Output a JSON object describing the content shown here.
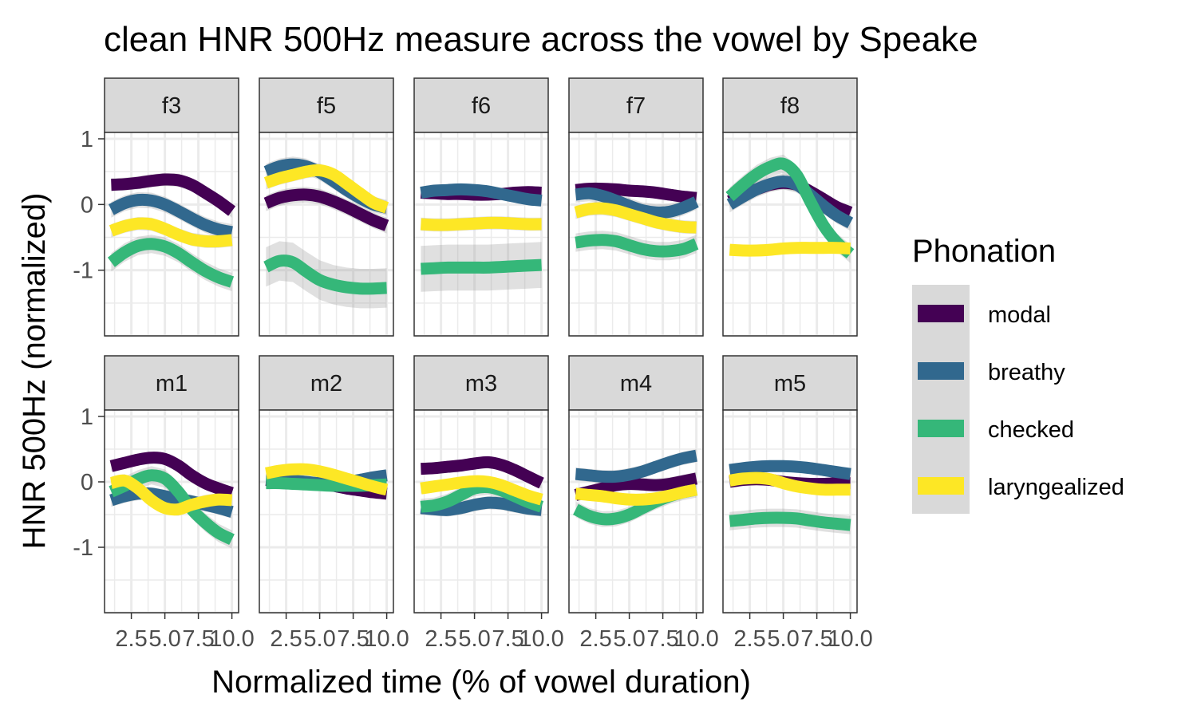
{
  "chart_data": {
    "type": "line",
    "title": "clean HNR 500Hz measure across the vowel by Speake",
    "xlabel": "Normalized time (% of vowel duration)",
    "ylabel": "HNR 500Hz (normalized)",
    "xlim": [
      0.5,
      10.5
    ],
    "ylim": [
      -2.0,
      1.0
    ],
    "x_ticks": [
      2.5,
      5.0,
      7.5,
      10.0
    ],
    "x_tick_labels": [
      "2.5",
      "5.0",
      "7.5",
      "10.0"
    ],
    "y_ticks": [
      1,
      0,
      -1
    ],
    "y_tick_labels": [
      "1",
      "0",
      "-1"
    ],
    "grid": true,
    "legend": {
      "title": "Phonation",
      "position": "right",
      "entries": [
        {
          "label": "modal",
          "color": "#440154"
        },
        {
          "label": "breathy",
          "color": "#31688e"
        },
        {
          "label": "checked",
          "color": "#35b779"
        },
        {
          "label": "laryngealized",
          "color": "#fde725"
        }
      ]
    },
    "x": [
      1,
      2,
      3,
      4,
      5,
      6,
      7,
      8,
      9,
      10
    ],
    "panels": [
      {
        "label": "f3",
        "series": [
          {
            "name": "modal",
            "values": [
              0.3,
              0.31,
              0.33,
              0.36,
              0.38,
              0.37,
              0.3,
              0.18,
              0.05,
              -0.1
            ],
            "se": 0.1
          },
          {
            "name": "breathy",
            "values": [
              -0.08,
              0.02,
              0.07,
              0.06,
              0.0,
              -0.1,
              -0.21,
              -0.31,
              -0.38,
              -0.42
            ],
            "se": 0.12
          },
          {
            "name": "checked",
            "values": [
              -0.88,
              -0.73,
              -0.63,
              -0.6,
              -0.64,
              -0.74,
              -0.88,
              -1.01,
              -1.11,
              -1.18
            ],
            "se": 0.14
          },
          {
            "name": "laryngealized",
            "values": [
              -0.4,
              -0.33,
              -0.29,
              -0.3,
              -0.37,
              -0.46,
              -0.53,
              -0.56,
              -0.56,
              -0.54
            ],
            "se": 0.1
          }
        ]
      },
      {
        "label": "f5",
        "series": [
          {
            "name": "modal",
            "values": [
              0.02,
              0.1,
              0.14,
              0.15,
              0.12,
              0.05,
              -0.04,
              -0.14,
              -0.24,
              -0.32
            ],
            "se": 0.12
          },
          {
            "name": "breathy",
            "values": [
              0.5,
              0.58,
              0.61,
              0.58,
              0.49,
              0.36,
              0.22,
              0.1,
              0.0,
              -0.05
            ],
            "se": 0.12
          },
          {
            "name": "checked",
            "values": [
              -0.95,
              -0.86,
              -0.88,
              -1.02,
              -1.15,
              -1.22,
              -1.26,
              -1.28,
              -1.28,
              -1.27
            ],
            "se": 0.3
          },
          {
            "name": "laryngealized",
            "values": [
              0.33,
              0.4,
              0.45,
              0.5,
              0.52,
              0.46,
              0.32,
              0.17,
              0.03,
              -0.05
            ],
            "se": 0.1
          }
        ]
      },
      {
        "label": "f6",
        "series": [
          {
            "name": "modal",
            "values": [
              0.18,
              0.17,
              0.16,
              0.16,
              0.15,
              0.15,
              0.16,
              0.18,
              0.19,
              0.18
            ],
            "se": 0.08
          },
          {
            "name": "breathy",
            "values": [
              0.18,
              0.21,
              0.22,
              0.23,
              0.22,
              0.2,
              0.16,
              0.12,
              0.08,
              0.06
            ],
            "se": 0.08
          },
          {
            "name": "checked",
            "values": [
              -0.98,
              -0.97,
              -0.96,
              -0.96,
              -0.96,
              -0.96,
              -0.95,
              -0.94,
              -0.93,
              -0.92
            ],
            "se": 0.35
          },
          {
            "name": "laryngealized",
            "values": [
              -0.3,
              -0.31,
              -0.31,
              -0.3,
              -0.29,
              -0.28,
              -0.28,
              -0.29,
              -0.3,
              -0.3
            ],
            "se": 0.1
          }
        ]
      },
      {
        "label": "f7",
        "series": [
          {
            "name": "modal",
            "values": [
              0.22,
              0.24,
              0.24,
              0.23,
              0.21,
              0.2,
              0.18,
              0.15,
              0.12,
              0.1
            ],
            "se": 0.08
          },
          {
            "name": "breathy",
            "values": [
              0.15,
              0.17,
              0.13,
              0.06,
              -0.02,
              -0.09,
              -0.12,
              -0.11,
              -0.05,
              0.04
            ],
            "se": 0.12
          },
          {
            "name": "checked",
            "values": [
              -0.58,
              -0.55,
              -0.54,
              -0.56,
              -0.62,
              -0.68,
              -0.71,
              -0.71,
              -0.68,
              -0.6
            ],
            "se": 0.14
          },
          {
            "name": "laryngealized",
            "values": [
              -0.12,
              -0.07,
              -0.06,
              -0.09,
              -0.15,
              -0.21,
              -0.27,
              -0.31,
              -0.34,
              -0.35
            ],
            "se": 0.1
          }
        ]
      },
      {
        "label": "f8",
        "series": [
          {
            "name": "modal",
            "values": [
              0.05,
              0.15,
              0.23,
              0.3,
              0.33,
              0.3,
              0.2,
              0.08,
              -0.04,
              -0.12
            ],
            "se": 0.1
          },
          {
            "name": "breathy",
            "values": [
              0.0,
              0.12,
              0.23,
              0.31,
              0.35,
              0.3,
              0.15,
              -0.02,
              -0.17,
              -0.28
            ],
            "se": 0.12
          },
          {
            "name": "checked",
            "values": [
              0.12,
              0.3,
              0.46,
              0.57,
              0.62,
              0.45,
              0.05,
              -0.32,
              -0.58,
              -0.75
            ],
            "se": 0.14
          },
          {
            "name": "laryngealized",
            "values": [
              -0.69,
              -0.7,
              -0.7,
              -0.69,
              -0.67,
              -0.66,
              -0.66,
              -0.66,
              -0.66,
              -0.67
            ],
            "se": 0.08
          }
        ]
      },
      {
        "label": "m1",
        "series": [
          {
            "name": "modal",
            "values": [
              0.24,
              0.29,
              0.34,
              0.37,
              0.35,
              0.25,
              0.1,
              -0.02,
              -0.1,
              -0.17
            ],
            "se": 0.08
          },
          {
            "name": "breathy",
            "values": [
              -0.28,
              -0.22,
              -0.18,
              -0.18,
              -0.22,
              -0.26,
              -0.3,
              -0.35,
              -0.4,
              -0.46
            ],
            "se": 0.1
          },
          {
            "name": "checked",
            "values": [
              -0.15,
              -0.06,
              0.04,
              0.1,
              0.05,
              -0.15,
              -0.42,
              -0.62,
              -0.78,
              -0.88
            ],
            "se": 0.14
          },
          {
            "name": "laryngealized",
            "values": [
              -0.02,
              0.02,
              -0.1,
              -0.28,
              -0.4,
              -0.42,
              -0.35,
              -0.3,
              -0.27,
              -0.28
            ],
            "se": 0.1
          }
        ]
      },
      {
        "label": "m2",
        "series": [
          {
            "name": "modal",
            "values": [
              0.03,
              0.01,
              0.0,
              -0.01,
              -0.03,
              -0.06,
              -0.1,
              -0.13,
              -0.16,
              -0.18
            ],
            "se": 0.08
          },
          {
            "name": "breathy",
            "values": [
              0.05,
              0.04,
              0.02,
              0.0,
              -0.02,
              -0.02,
              0.0,
              0.03,
              0.07,
              0.1
            ],
            "se": 0.08
          },
          {
            "name": "checked",
            "values": [
              -0.02,
              -0.02,
              -0.03,
              -0.04,
              -0.05,
              -0.06,
              -0.06,
              -0.06,
              -0.05,
              -0.04
            ],
            "se": 0.08
          },
          {
            "name": "laryngealized",
            "values": [
              0.13,
              0.17,
              0.19,
              0.19,
              0.16,
              0.11,
              0.05,
              -0.01,
              -0.07,
              -0.12
            ],
            "se": 0.08
          }
        ]
      },
      {
        "label": "m3",
        "series": [
          {
            "name": "modal",
            "values": [
              0.2,
              0.21,
              0.23,
              0.25,
              0.28,
              0.3,
              0.26,
              0.18,
              0.08,
              -0.02
            ],
            "se": 0.08
          },
          {
            "name": "breathy",
            "values": [
              -0.4,
              -0.42,
              -0.43,
              -0.4,
              -0.35,
              -0.32,
              -0.33,
              -0.37,
              -0.41,
              -0.43
            ],
            "se": 0.1
          },
          {
            "name": "checked",
            "values": [
              -0.38,
              -0.36,
              -0.3,
              -0.2,
              -0.1,
              -0.08,
              -0.13,
              -0.22,
              -0.31,
              -0.38
            ],
            "se": 0.12
          },
          {
            "name": "laryngealized",
            "values": [
              -0.1,
              -0.07,
              -0.04,
              -0.01,
              0.01,
              0.0,
              -0.05,
              -0.13,
              -0.21,
              -0.27
            ],
            "se": 0.08
          }
        ]
      },
      {
        "label": "m4",
        "series": [
          {
            "name": "modal",
            "values": [
              -0.2,
              -0.15,
              -0.1,
              -0.05,
              -0.03,
              -0.04,
              -0.05,
              -0.03,
              0.01,
              0.05
            ],
            "se": 0.1
          },
          {
            "name": "breathy",
            "values": [
              0.12,
              0.1,
              0.08,
              0.08,
              0.11,
              0.16,
              0.23,
              0.3,
              0.36,
              0.4
            ],
            "se": 0.1
          },
          {
            "name": "checked",
            "values": [
              -0.42,
              -0.52,
              -0.57,
              -0.56,
              -0.5,
              -0.4,
              -0.3,
              -0.22,
              -0.16,
              -0.12
            ],
            "se": 0.12
          },
          {
            "name": "laryngealized",
            "values": [
              -0.18,
              -0.2,
              -0.22,
              -0.25,
              -0.27,
              -0.27,
              -0.25,
              -0.21,
              -0.16,
              -0.12
            ],
            "se": 0.08
          }
        ]
      },
      {
        "label": "m5",
        "series": [
          {
            "name": "modal",
            "values": [
              0.0,
              0.03,
              0.04,
              0.03,
              0.0,
              -0.02,
              -0.03,
              -0.03,
              -0.02,
              -0.02
            ],
            "se": 0.08
          },
          {
            "name": "breathy",
            "values": [
              0.18,
              0.21,
              0.23,
              0.24,
              0.24,
              0.23,
              0.21,
              0.18,
              0.15,
              0.12
            ],
            "se": 0.08
          },
          {
            "name": "checked",
            "values": [
              -0.6,
              -0.58,
              -0.56,
              -0.55,
              -0.55,
              -0.56,
              -0.59,
              -0.62,
              -0.64,
              -0.66
            ],
            "se": 0.14
          },
          {
            "name": "laryngealized",
            "values": [
              0.02,
              0.05,
              0.06,
              0.04,
              -0.02,
              -0.07,
              -0.1,
              -0.12,
              -0.12,
              -0.12
            ],
            "se": 0.08
          }
        ]
      }
    ]
  }
}
